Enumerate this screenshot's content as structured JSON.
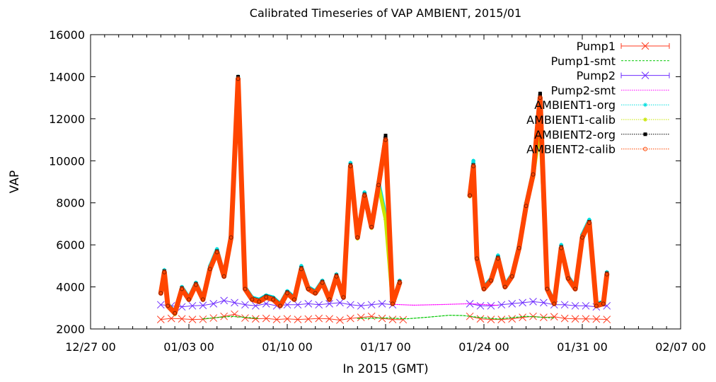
{
  "chart_data": {
    "type": "line",
    "title": "Calibrated Timeseries of VAP AMBIENT, 2015/01",
    "xlabel": "In 2015 (GMT)",
    "ylabel": "VAP",
    "ylim": [
      2000,
      16000
    ],
    "yticks": [
      2000,
      4000,
      6000,
      8000,
      10000,
      12000,
      14000,
      16000
    ],
    "xlim": [
      "2014-12-27 00:00",
      "2015-02-07 00:00"
    ],
    "xticks": [
      "12/27 00",
      "01/03 00",
      "01/10 00",
      "01/17 00",
      "01/24 00",
      "01/31 00",
      "02/07 00"
    ],
    "legend_position": "top-right",
    "series": [
      {
        "name": "Pump1",
        "color": "#ff3b1f",
        "style": "line-x-markers",
        "x": [
          "2015-01-01 00:00",
          "2015-01-01 18:00",
          "2015-01-02 12:00",
          "2015-01-03 06:00",
          "2015-01-04 00:00",
          "2015-01-04 18:00",
          "2015-01-05 12:00",
          "2015-01-06 06:00",
          "2015-01-07 00:00",
          "2015-01-07 18:00",
          "2015-01-08 12:00",
          "2015-01-09 06:00",
          "2015-01-10 00:00",
          "2015-01-10 18:00",
          "2015-01-11 12:00",
          "2015-01-12 06:00",
          "2015-01-13 00:00",
          "2015-01-13 18:00",
          "2015-01-14 12:00",
          "2015-01-15 06:00",
          "2015-01-16 00:00",
          "2015-01-16 18:00",
          "2015-01-17 12:00",
          "2015-01-18 06:00",
          "2015-01-23 00:00",
          "2015-01-23 18:00",
          "2015-01-24 12:00",
          "2015-01-25 06:00",
          "2015-01-26 00:00",
          "2015-01-26 18:00",
          "2015-01-27 12:00",
          "2015-01-28 06:00",
          "2015-01-29 00:00",
          "2015-01-29 18:00",
          "2015-01-30 12:00",
          "2015-01-31 06:00",
          "2015-02-01 00:00",
          "2015-02-01 18:00"
        ],
        "values": [
          2450,
          2500,
          2480,
          2450,
          2460,
          2520,
          2600,
          2700,
          2520,
          2480,
          2500,
          2450,
          2480,
          2450,
          2470,
          2500,
          2480,
          2420,
          2500,
          2550,
          2600,
          2500,
          2450,
          2440,
          2600,
          2480,
          2450,
          2450,
          2480,
          2550,
          2600,
          2550,
          2580,
          2500,
          2480,
          2480,
          2470,
          2450
        ]
      },
      {
        "name": "Pump1-smt",
        "color": "#00c800",
        "style": "dashed",
        "x": [
          "2015-01-01 00:00",
          "2015-01-04 00:00",
          "2015-01-06 00:00",
          "2015-01-08 00:00",
          "2015-01-12 00:00",
          "2015-01-15 00:00",
          "2015-01-17 00:00",
          "2015-01-18 12:00",
          "2015-01-20 00:00",
          "2015-01-21 12:00",
          "2015-01-22 12:00",
          "2015-01-23 12:00",
          "2015-01-25 00:00",
          "2015-01-27 00:00",
          "2015-01-29 00:00",
          "2015-02-01 18:00"
        ],
        "values": [
          2480,
          2480,
          2600,
          2500,
          2470,
          2500,
          2520,
          2480,
          2560,
          2650,
          2640,
          2560,
          2470,
          2600,
          2520,
          2460
        ]
      },
      {
        "name": "Pump2",
        "color": "#6e2cff",
        "style": "line-x-markers",
        "x": [
          "2015-01-01 00:00",
          "2015-01-01 18:00",
          "2015-01-02 12:00",
          "2015-01-03 06:00",
          "2015-01-04 00:00",
          "2015-01-04 18:00",
          "2015-01-05 12:00",
          "2015-01-06 06:00",
          "2015-01-07 00:00",
          "2015-01-07 18:00",
          "2015-01-08 12:00",
          "2015-01-09 06:00",
          "2015-01-10 00:00",
          "2015-01-10 18:00",
          "2015-01-11 12:00",
          "2015-01-12 06:00",
          "2015-01-13 00:00",
          "2015-01-13 18:00",
          "2015-01-14 12:00",
          "2015-01-15 06:00",
          "2015-01-16 00:00",
          "2015-01-16 18:00",
          "2015-01-17 12:00",
          "2015-01-23 00:00",
          "2015-01-23 18:00",
          "2015-01-24 12:00",
          "2015-01-25 06:00",
          "2015-01-26 00:00",
          "2015-01-26 18:00",
          "2015-01-27 12:00",
          "2015-01-28 06:00",
          "2015-01-29 00:00",
          "2015-01-29 18:00",
          "2015-01-30 12:00",
          "2015-01-31 06:00",
          "2015-02-01 00:00",
          "2015-02-01 18:00"
        ],
        "values": [
          3150,
          3100,
          3050,
          3100,
          3120,
          3200,
          3350,
          3250,
          3150,
          3100,
          3200,
          3100,
          3150,
          3150,
          3200,
          3150,
          3200,
          3250,
          3150,
          3100,
          3150,
          3200,
          3150,
          3200,
          3100,
          3100,
          3150,
          3200,
          3250,
          3300,
          3250,
          3150,
          3150,
          3100,
          3100,
          3050,
          3100
        ]
      },
      {
        "name": "Pump2-smt",
        "color": "#ff00ff",
        "style": "dotted",
        "x": [
          "2015-01-01 00:00",
          "2015-01-05 12:00",
          "2015-01-10 00:00",
          "2015-01-15 00:00",
          "2015-01-17 12:00",
          "2015-01-19 00:00",
          "2015-01-21 00:00",
          "2015-01-23 00:00",
          "2015-01-25 00:00",
          "2015-01-27 12:00",
          "2015-01-30 00:00",
          "2015-02-01 18:00"
        ],
        "values": [
          3120,
          3180,
          3150,
          3170,
          3170,
          3130,
          3160,
          3200,
          3120,
          3240,
          3120,
          3080
        ]
      },
      {
        "name": "AMBIENT1-org",
        "color": "#00dede",
        "style": "dotted-markers",
        "x": [
          "2015-01-01 00:00",
          "2015-01-01 06:00",
          "2015-01-01 12:00",
          "2015-01-02 00:00",
          "2015-01-02 12:00",
          "2015-01-03 00:00",
          "2015-01-03 12:00",
          "2015-01-04 00:00",
          "2015-01-04 12:00",
          "2015-01-05 00:00",
          "2015-01-05 12:00",
          "2015-01-06 00:00",
          "2015-01-06 12:00",
          "2015-01-07 00:00",
          "2015-01-07 12:00",
          "2015-01-08 00:00",
          "2015-01-08 12:00",
          "2015-01-09 00:00",
          "2015-01-09 12:00",
          "2015-01-10 00:00",
          "2015-01-10 12:00",
          "2015-01-11 00:00",
          "2015-01-11 12:00",
          "2015-01-12 00:00",
          "2015-01-12 12:00",
          "2015-01-13 00:00",
          "2015-01-13 12:00",
          "2015-01-14 00:00",
          "2015-01-14 12:00",
          "2015-01-15 00:00",
          "2015-01-15 12:00",
          "2015-01-16 00:00",
          "2015-01-16 12:00",
          "2015-01-17 00:00",
          "2015-01-17 12:00",
          "2015-01-18 00:00",
          "2015-01-23 00:00",
          "2015-01-23 06:00",
          "2015-01-23 12:00",
          "2015-01-24 00:00",
          "2015-01-24 12:00",
          "2015-01-25 00:00",
          "2015-01-25 12:00",
          "2015-01-26 00:00",
          "2015-01-26 12:00",
          "2015-01-27 00:00",
          "2015-01-27 12:00",
          "2015-01-28 00:00",
          "2015-01-28 12:00",
          "2015-01-29 00:00",
          "2015-01-29 12:00",
          "2015-01-30 00:00",
          "2015-01-30 12:00",
          "2015-01-31 00:00",
          "2015-01-31 12:00",
          "2015-02-01 00:00",
          "2015-02-01 12:00",
          "2015-02-01 18:00"
        ],
        "values": [
          3800,
          4800,
          3200,
          2800,
          4000,
          3500,
          4200,
          3500,
          5000,
          5800,
          4600,
          6500,
          14000,
          4000,
          3500,
          3400,
          3600,
          3500,
          3200,
          3800,
          3500,
          5000,
          4000,
          3800,
          4300,
          3500,
          4600,
          3600,
          9900,
          6500,
          8500,
          7000,
          9000,
          7400,
          3300,
          4300,
          8500,
          10000,
          5500,
          4000,
          4400,
          5500,
          4100,
          4600,
          6000,
          8000,
          9500,
          12000,
          4000,
          3300,
          6000,
          4500,
          4000,
          6500,
          7200,
          3200,
          3300,
          4700
        ]
      },
      {
        "name": "AMBIENT1-calib",
        "color": "#c8e600",
        "style": "dotted-markers",
        "x": [
          "2015-01-01 00:00",
          "2015-01-01 06:00",
          "2015-01-01 12:00",
          "2015-01-02 00:00",
          "2015-01-02 12:00",
          "2015-01-03 00:00",
          "2015-01-03 12:00",
          "2015-01-04 00:00",
          "2015-01-04 12:00",
          "2015-01-05 00:00",
          "2015-01-05 12:00",
          "2015-01-06 00:00",
          "2015-01-06 12:00",
          "2015-01-07 00:00",
          "2015-01-07 12:00",
          "2015-01-08 00:00",
          "2015-01-08 12:00",
          "2015-01-09 00:00",
          "2015-01-09 12:00",
          "2015-01-10 00:00",
          "2015-01-10 12:00",
          "2015-01-11 00:00",
          "2015-01-11 12:00",
          "2015-01-12 00:00",
          "2015-01-12 12:00",
          "2015-01-13 00:00",
          "2015-01-13 12:00",
          "2015-01-14 00:00",
          "2015-01-14 12:00",
          "2015-01-15 00:00",
          "2015-01-15 12:00",
          "2015-01-16 00:00",
          "2015-01-16 12:00",
          "2015-01-17 00:00",
          "2015-01-17 12:00",
          "2015-01-18 00:00",
          "2015-01-23 00:00",
          "2015-01-23 06:00",
          "2015-01-23 12:00",
          "2015-01-24 00:00",
          "2015-01-24 12:00",
          "2015-01-25 00:00",
          "2015-01-25 12:00",
          "2015-01-26 00:00",
          "2015-01-26 12:00",
          "2015-01-27 00:00",
          "2015-01-27 12:00",
          "2015-01-28 00:00",
          "2015-01-28 12:00",
          "2015-01-29 00:00",
          "2015-01-29 12:00",
          "2015-01-30 00:00",
          "2015-01-30 12:00",
          "2015-01-31 00:00",
          "2015-01-31 12:00",
          "2015-02-01 00:00",
          "2015-02-01 12:00",
          "2015-02-01 18:00"
        ],
        "values": [
          3700,
          4600,
          3100,
          2700,
          3900,
          3400,
          4100,
          3400,
          4800,
          5600,
          4500,
          6300,
          13500,
          3900,
          3400,
          3300,
          3500,
          3400,
          3100,
          3700,
          3400,
          4800,
          3900,
          3700,
          4200,
          3400,
          4500,
          3500,
          9600,
          6300,
          8300,
          6800,
          8800,
          7200,
          3200,
          4200,
          8300,
          9700,
          5300,
          3900,
          4300,
          5300,
          4000,
          4500,
          5800,
          7800,
          9200,
          11600,
          3900,
          3200,
          5800,
          4400,
          3900,
          6300,
          7000,
          3100,
          3200,
          4600
        ]
      },
      {
        "name": "AMBIENT2-org",
        "color": "#000000",
        "style": "dotted-markers",
        "x": [
          "2015-01-01 00:00",
          "2015-01-01 06:00",
          "2015-01-01 12:00",
          "2015-01-02 00:00",
          "2015-01-02 12:00",
          "2015-01-03 00:00",
          "2015-01-03 12:00",
          "2015-01-04 00:00",
          "2015-01-04 12:00",
          "2015-01-05 00:00",
          "2015-01-05 12:00",
          "2015-01-06 00:00",
          "2015-01-06 12:00",
          "2015-01-07 00:00",
          "2015-01-07 12:00",
          "2015-01-08 00:00",
          "2015-01-08 12:00",
          "2015-01-09 00:00",
          "2015-01-09 12:00",
          "2015-01-10 00:00",
          "2015-01-10 12:00",
          "2015-01-11 00:00",
          "2015-01-11 12:00",
          "2015-01-12 00:00",
          "2015-01-12 12:00",
          "2015-01-13 00:00",
          "2015-01-13 12:00",
          "2015-01-14 00:00",
          "2015-01-14 12:00",
          "2015-01-15 00:00",
          "2015-01-15 12:00",
          "2015-01-16 00:00",
          "2015-01-16 12:00",
          "2015-01-17 00:00",
          "2015-01-17 12:00",
          "2015-01-18 00:00",
          "2015-01-23 00:00",
          "2015-01-23 06:00",
          "2015-01-23 12:00",
          "2015-01-24 00:00",
          "2015-01-24 12:00",
          "2015-01-25 00:00",
          "2015-01-25 12:00",
          "2015-01-26 00:00",
          "2015-01-26 12:00",
          "2015-01-27 00:00",
          "2015-01-27 12:00",
          "2015-01-28 00:00",
          "2015-01-28 12:00",
          "2015-01-29 00:00",
          "2015-01-29 12:00",
          "2015-01-30 00:00",
          "2015-01-30 12:00",
          "2015-01-31 00:00",
          "2015-01-31 12:00",
          "2015-02-01 00:00",
          "2015-02-01 12:00",
          "2015-02-01 18:00"
        ],
        "values": [
          3750,
          4750,
          3150,
          2800,
          3950,
          3450,
          4150,
          3450,
          4900,
          5700,
          4550,
          6400,
          14000,
          3950,
          3450,
          3350,
          3550,
          3450,
          3150,
          3750,
          3450,
          4900,
          3950,
          3750,
          4250,
          3450,
          4550,
          3550,
          9800,
          6400,
          8400,
          6900,
          8900,
          11200,
          3250,
          4250,
          8400,
          9800,
          5400,
          3950,
          4350,
          5400,
          4050,
          4550,
          5900,
          7900,
          9400,
          13200,
          3950,
          3250,
          5900,
          4450,
          3950,
          6400,
          7100,
          3150,
          3250,
          4650
        ]
      },
      {
        "name": "AMBIENT2-calib",
        "color": "#ff4500",
        "style": "thick-line-o-markers",
        "x": [
          "2015-01-01 00:00",
          "2015-01-01 06:00",
          "2015-01-01 12:00",
          "2015-01-02 00:00",
          "2015-01-02 12:00",
          "2015-01-03 00:00",
          "2015-01-03 12:00",
          "2015-01-04 00:00",
          "2015-01-04 12:00",
          "2015-01-05 00:00",
          "2015-01-05 12:00",
          "2015-01-06 00:00",
          "2015-01-06 12:00",
          "2015-01-07 00:00",
          "2015-01-07 12:00",
          "2015-01-08 00:00",
          "2015-01-08 12:00",
          "2015-01-09 00:00",
          "2015-01-09 12:00",
          "2015-01-10 00:00",
          "2015-01-10 12:00",
          "2015-01-11 00:00",
          "2015-01-11 12:00",
          "2015-01-12 00:00",
          "2015-01-12 12:00",
          "2015-01-13 00:00",
          "2015-01-13 12:00",
          "2015-01-14 00:00",
          "2015-01-14 12:00",
          "2015-01-15 00:00",
          "2015-01-15 12:00",
          "2015-01-16 00:00",
          "2015-01-16 12:00",
          "2015-01-17 00:00",
          "2015-01-17 12:00",
          "2015-01-18 00:00",
          "2015-01-23 00:00",
          "2015-01-23 06:00",
          "2015-01-23 12:00",
          "2015-01-24 00:00",
          "2015-01-24 12:00",
          "2015-01-25 00:00",
          "2015-01-25 12:00",
          "2015-01-26 00:00",
          "2015-01-26 12:00",
          "2015-01-27 00:00",
          "2015-01-27 12:00",
          "2015-01-28 00:00",
          "2015-01-28 12:00",
          "2015-01-29 00:00",
          "2015-01-29 12:00",
          "2015-01-30 00:00",
          "2015-01-30 12:00",
          "2015-01-31 00:00",
          "2015-01-31 12:00",
          "2015-02-01 00:00",
          "2015-02-01 12:00",
          "2015-02-01 18:00"
        ],
        "values": [
          3700,
          4700,
          3100,
          2750,
          3900,
          3400,
          4100,
          3400,
          4850,
          5650,
          4500,
          6350,
          13900,
          3900,
          3400,
          3300,
          3500,
          3400,
          3100,
          3700,
          3400,
          4850,
          3900,
          3700,
          4200,
          3400,
          4500,
          3500,
          9750,
          6350,
          8350,
          6850,
          8850,
          11000,
          3200,
          4200,
          8350,
          9750,
          5350,
          3900,
          4300,
          5350,
          4000,
          4500,
          5850,
          7850,
          9350,
          13000,
          3900,
          3200,
          5850,
          4400,
          3900,
          6350,
          7050,
          3100,
          3200,
          4600
        ]
      }
    ]
  }
}
